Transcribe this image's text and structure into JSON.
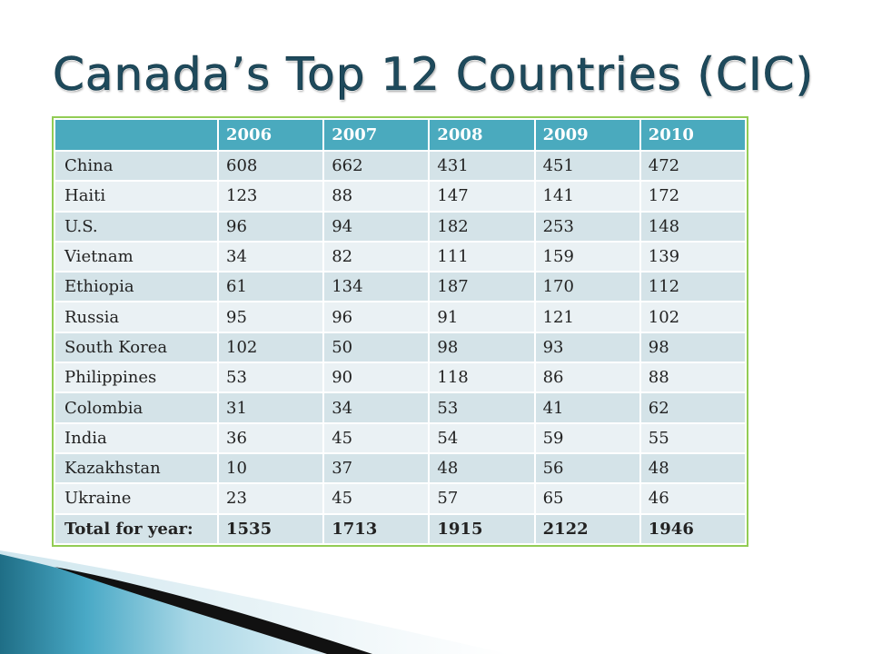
{
  "slide": {
    "title": "Canada’s Top 12 Countries (CIC)"
  },
  "table": {
    "corner": "",
    "years": [
      "2006",
      "2007",
      "2008",
      "2009",
      "2010"
    ],
    "rows": [
      {
        "country": "China",
        "values": [
          "608",
          "662",
          "431",
          "451",
          "472"
        ]
      },
      {
        "country": "Haiti",
        "values": [
          "123",
          "88",
          "147",
          "141",
          "172"
        ]
      },
      {
        "country": "U.S.",
        "values": [
          "96",
          "94",
          "182",
          "253",
          "148"
        ]
      },
      {
        "country": "Vietnam",
        "values": [
          "34",
          "82",
          "111",
          "159",
          "139"
        ]
      },
      {
        "country": "Ethiopia",
        "values": [
          "61",
          "134",
          "187",
          "170",
          "112"
        ]
      },
      {
        "country": "Russia",
        "values": [
          "95",
          "96",
          "91",
          "121",
          "102"
        ]
      },
      {
        "country": "South Korea",
        "values": [
          "102",
          "50",
          "98",
          "93",
          "98"
        ]
      },
      {
        "country": "Philippines",
        "values": [
          "53",
          "90",
          "118",
          "86",
          "88"
        ]
      },
      {
        "country": "Colombia",
        "values": [
          "31",
          "34",
          "53",
          "41",
          "62"
        ]
      },
      {
        "country": "India",
        "values": [
          "36",
          "45",
          "54",
          "59",
          "55"
        ]
      },
      {
        "country": "Kazakhstan",
        "values": [
          "10",
          "37",
          "48",
          "56",
          "48"
        ]
      },
      {
        "country": "Ukraine",
        "values": [
          "23",
          "45",
          "57",
          "65",
          "46"
        ]
      }
    ],
    "total": {
      "label": "Total for year:",
      "values": [
        "1535",
        "1713",
        "1915",
        "2122",
        "1946"
      ]
    }
  },
  "theme": {
    "title_color": "#1e4a5c",
    "header_bg": "#4aaabe",
    "row_dark": "#d4e3e8",
    "row_light": "#eaf1f4",
    "frame_border": "#92cc54"
  }
}
